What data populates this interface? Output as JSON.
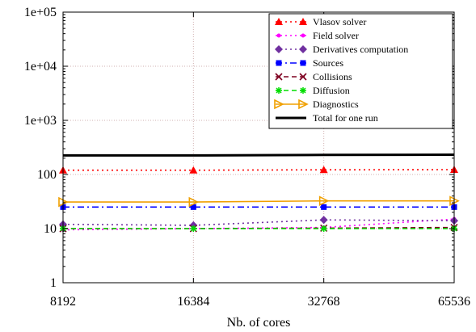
{
  "chart_data": {
    "type": "line",
    "title": "",
    "xlabel": "Nb. of cores",
    "ylabel": "",
    "x_scale": "log2",
    "y_scale": "log10",
    "x": [
      8192,
      16384,
      32768,
      65536
    ],
    "x_tick_labels": [
      "8192",
      "16384",
      "32768",
      "65536"
    ],
    "ylim": [
      1,
      100000
    ],
    "y_ticks": [
      1,
      10,
      100,
      1000,
      10000,
      100000
    ],
    "y_tick_labels": [
      "1",
      "10",
      "100",
      "1e+03",
      "1e+04",
      "1e+05"
    ],
    "grid": true,
    "legend_position": "top-right",
    "series": [
      {
        "name": "Vlasov solver",
        "values": [
          120,
          120,
          122,
          123
        ],
        "color": "#ff0000",
        "marker": "triangle",
        "dash": "dotted"
      },
      {
        "name": "Field solver",
        "values": [
          9.5,
          10,
          10.5,
          15
        ],
        "color": "#ff00ff",
        "marker": "circle",
        "dash": "dotted"
      },
      {
        "name": "Derivatives computation",
        "values": [
          12,
          11.5,
          14.5,
          14
        ],
        "color": "#7030a0",
        "marker": "diamond",
        "dash": "dotted"
      },
      {
        "name": "Sources",
        "values": [
          25,
          25,
          25,
          25
        ],
        "color": "#0000ff",
        "marker": "square",
        "dash": "dashdot"
      },
      {
        "name": "Collisions",
        "values": [
          10,
          10,
          10.2,
          10.5
        ],
        "color": "#7f0020",
        "marker": "cross",
        "dash": "dashed"
      },
      {
        "name": "Diffusion",
        "values": [
          10,
          10,
          10,
          10
        ],
        "color": "#00dd00",
        "marker": "star",
        "dash": "dashed"
      },
      {
        "name": "Diagnostics",
        "values": [
          31,
          31,
          32.5,
          32.5
        ],
        "color": "#f0a000",
        "marker": "triangle-right",
        "dash": "solid"
      },
      {
        "name": "Total for one run",
        "values": [
          225,
          225,
          230,
          232
        ],
        "color": "#000000",
        "marker": "none",
        "dash": "solid"
      }
    ]
  }
}
